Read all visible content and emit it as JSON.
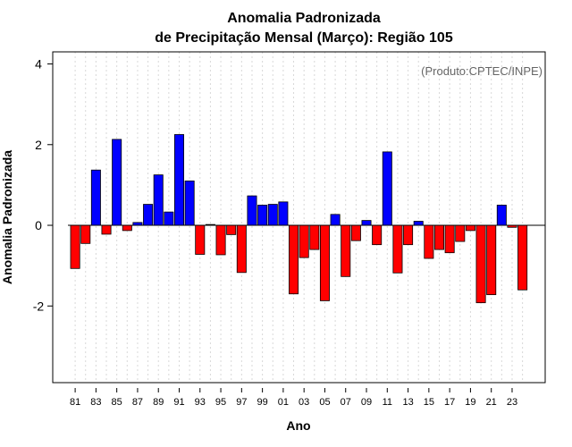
{
  "chart_data": {
    "type": "bar",
    "title_line1": "Anomalia Padronizada",
    "title_line2": "de Precipitação Mensal (Março): Região 105",
    "xlabel": "Ano",
    "ylabel": "Anomalia Padronizada",
    "credit": "(Produto:CPTEC/INPE)",
    "ylim": [
      -3.9,
      4.3
    ],
    "yticks": [
      -2,
      0,
      2,
      4
    ],
    "grid": "vertical dotted lines per bar",
    "positive_color": "#0000ff",
    "negative_color": "#ff0000",
    "categories": [
      "81",
      "82",
      "83",
      "84",
      "85",
      "86",
      "87",
      "88",
      "89",
      "90",
      "91",
      "92",
      "93",
      "94",
      "95",
      "96",
      "97",
      "98",
      "99",
      "00",
      "01",
      "02",
      "03",
      "04",
      "05",
      "06",
      "07",
      "08",
      "09",
      "10",
      "11",
      "12",
      "13",
      "14",
      "15",
      "16",
      "17",
      "18",
      "19",
      "20",
      "21",
      "22",
      "23",
      "24"
    ],
    "xtick_labels": [
      "81",
      "83",
      "85",
      "87",
      "89",
      "91",
      "93",
      "95",
      "97",
      "99",
      "01",
      "03",
      "05",
      "07",
      "09",
      "11",
      "13",
      "15",
      "17",
      "19",
      "21",
      "23"
    ],
    "values": [
      -1.07,
      -0.45,
      1.37,
      -0.22,
      2.13,
      -0.13,
      0.07,
      0.52,
      1.25,
      0.33,
      2.25,
      1.1,
      -0.72,
      0.02,
      -0.73,
      -0.23,
      -1.17,
      0.73,
      0.5,
      0.52,
      0.58,
      -1.7,
      -0.8,
      -0.6,
      -1.87,
      0.27,
      -1.27,
      -0.38,
      0.12,
      -0.48,
      1.82,
      -1.18,
      -0.48,
      0.1,
      -0.82,
      -0.6,
      -0.68,
      -0.4,
      -0.13,
      -1.92,
      -1.72,
      0.5,
      -0.05,
      -1.6
    ]
  }
}
